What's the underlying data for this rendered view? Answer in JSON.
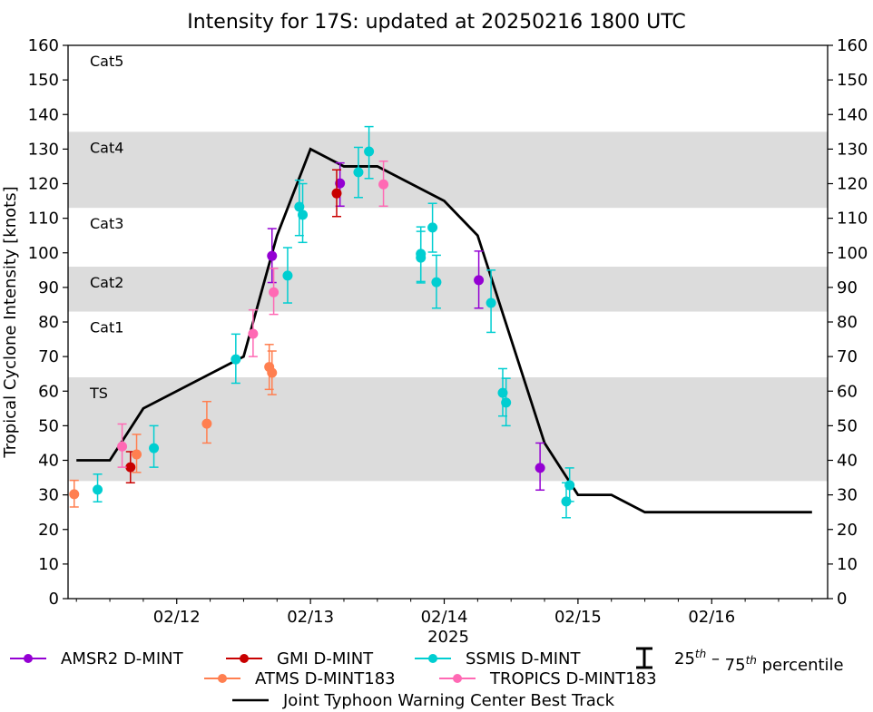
{
  "chart_data": {
    "type": "scatter",
    "title": "Intensity for 17S: updated at 20250216 1800 UTC",
    "xlabel": "2025",
    "ylabel": "Tropical Cyclone Intensity [knots]",
    "x_units": "hours since 2025-02-11 00Z",
    "xlim": [
      4.5,
      140.8
    ],
    "ylim": [
      0,
      160
    ],
    "yticks": [
      0,
      10,
      20,
      30,
      40,
      50,
      60,
      70,
      80,
      90,
      100,
      110,
      120,
      130,
      140,
      150,
      160
    ],
    "xticks": [
      {
        "label": "02/12",
        "x": 24
      },
      {
        "label": "02/13",
        "x": 48
      },
      {
        "label": "02/14",
        "x": 72
      },
      {
        "label": "02/15",
        "x": 96
      },
      {
        "label": "02/16",
        "x": 120
      }
    ],
    "minor_tick_step_hours": 6,
    "category_bands": [
      {
        "label": "TS",
        "low": 34,
        "high": 64,
        "shaded": true
      },
      {
        "label": "Cat1",
        "low": 64,
        "high": 83,
        "shaded": false
      },
      {
        "label": "Cat2",
        "low": 83,
        "high": 96,
        "shaded": true
      },
      {
        "label": "Cat3",
        "low": 96,
        "high": 113,
        "shaded": false
      },
      {
        "label": "Cat4",
        "low": 113,
        "high": 135,
        "shaded": true
      },
      {
        "label": "Cat5",
        "low": 135,
        "high": 160,
        "shaded": false
      }
    ],
    "band_color": "#dcdcdc",
    "best_track": {
      "name": "Joint Typhoon Warning Center Best Track",
      "color": "#000000",
      "points": [
        [
          6,
          40
        ],
        [
          12,
          40
        ],
        [
          18,
          55
        ],
        [
          36,
          70
        ],
        [
          42,
          105
        ],
        [
          48,
          130
        ],
        [
          54,
          125
        ],
        [
          60,
          125
        ],
        [
          72,
          115
        ],
        [
          78,
          105
        ],
        [
          90,
          45
        ],
        [
          96,
          30
        ],
        [
          102,
          30
        ],
        [
          108,
          25
        ],
        [
          114,
          25
        ],
        [
          120,
          25
        ],
        [
          126,
          25
        ],
        [
          132,
          25
        ],
        [
          138,
          25
        ]
      ]
    },
    "series": [
      {
        "name": "AMSR2 D-MINT",
        "color": "#9400d3",
        "points": [
          {
            "x": 41.1,
            "y": 99.1,
            "lo": 91.4,
            "hi": 107.0
          },
          {
            "x": 53.3,
            "y": 120.1,
            "lo": 113.5,
            "hi": 126.0
          },
          {
            "x": 78.2,
            "y": 92.1,
            "lo": 84.0,
            "hi": 100.5
          },
          {
            "x": 89.2,
            "y": 37.8,
            "lo": 31.4,
            "hi": 45.0
          }
        ]
      },
      {
        "name": "GMI D-MINT",
        "color": "#c80000",
        "points": [
          {
            "x": 15.7,
            "y": 38.0,
            "lo": 33.5,
            "hi": 42.5
          },
          {
            "x": 52.7,
            "y": 117.2,
            "lo": 110.5,
            "hi": 124.0
          }
        ]
      },
      {
        "name": "SSMIS D-MINT",
        "color": "#00ced1",
        "points": [
          {
            "x": 9.8,
            "y": 31.5,
            "lo": 28.0,
            "hi": 36.0
          },
          {
            "x": 19.9,
            "y": 43.5,
            "lo": 38.0,
            "hi": 50.0
          },
          {
            "x": 34.6,
            "y": 69.2,
            "lo": 62.3,
            "hi": 76.5
          },
          {
            "x": 43.9,
            "y": 93.4,
            "lo": 85.5,
            "hi": 101.5
          },
          {
            "x": 46.0,
            "y": 113.3,
            "lo": 105.0,
            "hi": 121.0
          },
          {
            "x": 46.6,
            "y": 111.0,
            "lo": 103.0,
            "hi": 120.0
          },
          {
            "x": 56.6,
            "y": 123.3,
            "lo": 116.0,
            "hi": 130.5
          },
          {
            "x": 58.5,
            "y": 129.3,
            "lo": 121.5,
            "hi": 136.5
          },
          {
            "x": 67.8,
            "y": 99.7,
            "lo": 91.7,
            "hi": 107.5
          },
          {
            "x": 67.8,
            "y": 98.6,
            "lo": 91.3,
            "hi": 106.2
          },
          {
            "x": 69.9,
            "y": 107.3,
            "lo": 100.2,
            "hi": 114.3
          },
          {
            "x": 70.6,
            "y": 91.5,
            "lo": 84.0,
            "hi": 99.3
          },
          {
            "x": 80.4,
            "y": 85.5,
            "lo": 77.0,
            "hi": 95.0
          },
          {
            "x": 82.5,
            "y": 59.5,
            "lo": 52.8,
            "hi": 66.5
          },
          {
            "x": 83.1,
            "y": 56.7,
            "lo": 50.0,
            "hi": 63.7
          },
          {
            "x": 93.9,
            "y": 28.1,
            "lo": 23.4,
            "hi": 33.5
          },
          {
            "x": 94.5,
            "y": 32.8,
            "lo": 28.1,
            "hi": 37.8
          }
        ]
      },
      {
        "name": "ATMS D-MINT183",
        "color": "#ff7f50",
        "points": [
          {
            "x": 5.6,
            "y": 30.2,
            "lo": 26.5,
            "hi": 34.2
          },
          {
            "x": 16.8,
            "y": 41.7,
            "lo": 36.5,
            "hi": 47.5
          },
          {
            "x": 29.4,
            "y": 50.6,
            "lo": 45.0,
            "hi": 57.0
          },
          {
            "x": 40.6,
            "y": 67.0,
            "lo": 60.5,
            "hi": 73.5
          },
          {
            "x": 41.1,
            "y": 65.3,
            "lo": 59.0,
            "hi": 71.6
          }
        ]
      },
      {
        "name": "TROPICS D-MINT183",
        "color": "#ff69b4",
        "points": [
          {
            "x": 14.2,
            "y": 44.0,
            "lo": 38.0,
            "hi": 50.5
          },
          {
            "x": 37.7,
            "y": 76.6,
            "lo": 70.0,
            "hi": 83.5
          },
          {
            "x": 41.4,
            "y": 88.6,
            "lo": 82.2,
            "hi": 95.5
          },
          {
            "x": 61.1,
            "y": 119.8,
            "lo": 113.5,
            "hi": 126.5
          }
        ]
      }
    ],
    "legend": {
      "placement": "bottom",
      "rows": [
        [
          "AMSR2 D-MINT",
          "GMI D-MINT",
          "SSMIS D-MINT",
          "percentile"
        ],
        [
          "ATMS D-MINT183",
          "TROPICS D-MINT183"
        ],
        [
          "Joint Typhoon Warning Center Best Track"
        ]
      ],
      "percentile_label": {
        "base1": "25",
        "sup1": "th",
        "dash": " – ",
        "base2": "75",
        "sup2": "th",
        "tail": " percentile"
      }
    }
  }
}
